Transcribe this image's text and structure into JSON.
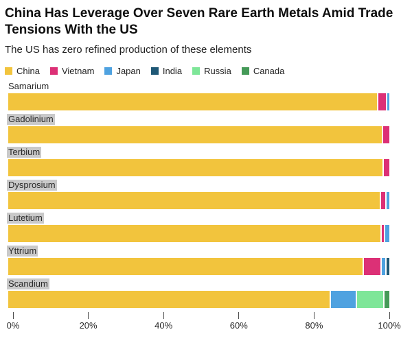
{
  "header": {
    "title": "China Has Leverage Over Seven Rare Earth Metals Amid Trade Tensions With the US",
    "subtitle": "The US has zero refined production of these elements"
  },
  "chart_data": {
    "type": "bar",
    "orientation": "horizontal",
    "stacked": true,
    "unit": "percent share of refined production",
    "title": "China Has Leverage Over Seven Rare Earth Metals Amid Trade Tensions With the US",
    "subtitle": "The US has zero refined production of these elements",
    "legend_position": "top",
    "grid": false,
    "categories": [
      "Samarium",
      "Gadolinium",
      "Terbium",
      "Dysprosium",
      "Lutetium",
      "Yttrium",
      "Scandium"
    ],
    "category_label_highlighted": [
      false,
      true,
      true,
      true,
      true,
      true,
      true
    ],
    "series": [
      {
        "name": "China",
        "color": "#F2C43D",
        "values": [
          97.1,
          98.4,
          98.6,
          97.8,
          98.0,
          93.4,
          84.7
        ]
      },
      {
        "name": "Vietnam",
        "color": "#DC3076",
        "values": [
          2.4,
          1.6,
          1.4,
          1.5,
          1.0,
          4.6,
          0
        ]
      },
      {
        "name": "Japan",
        "color": "#4FA2E0",
        "values": [
          0.5,
          0,
          0,
          0.7,
          1.0,
          1.3,
          6.9
        ]
      },
      {
        "name": "India",
        "color": "#1F5876",
        "values": [
          0,
          0,
          0,
          0,
          0,
          0.7,
          0
        ]
      },
      {
        "name": "Russia",
        "color": "#7EE698",
        "values": [
          0,
          0,
          0,
          0,
          0,
          0,
          7.2
        ]
      },
      {
        "name": "Canada",
        "color": "#459A58",
        "values": [
          0,
          0,
          0,
          0,
          0,
          0,
          1.2
        ]
      }
    ],
    "xlabel": "",
    "ylabel": "",
    "x_axis": {
      "range": [
        0,
        100
      ],
      "tick_labels": [
        "0%",
        "20%",
        "40%",
        "60%",
        "80%",
        "100%"
      ]
    }
  },
  "colors": {
    "label_highlight": "#c9c9c9",
    "tick": "#4d4d4d",
    "background": "#ffffff"
  }
}
